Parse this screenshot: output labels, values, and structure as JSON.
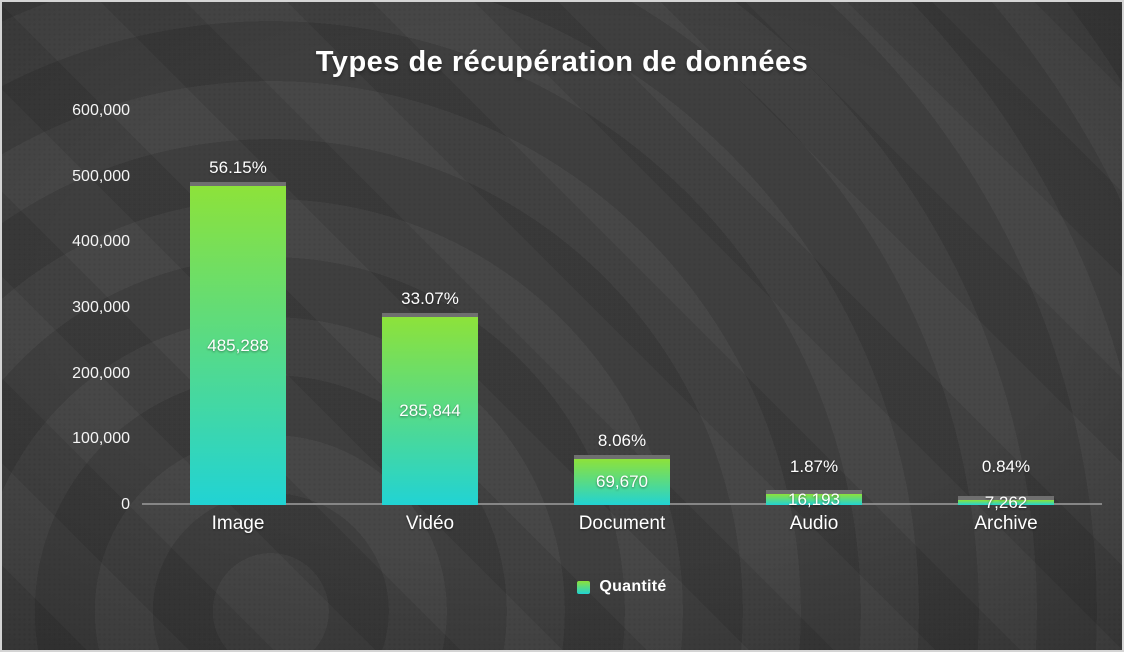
{
  "title": "Types de récupération de données",
  "legend": {
    "label": "Quantité"
  },
  "colors": {
    "background": "#3f3f3f",
    "bar_top": "#8de23a",
    "bar_bottom": "#21d3d4",
    "bar_cap": "#6f6f6f",
    "axis_line": "#868686",
    "text": "#ffffff",
    "border": "#d4d4d4"
  },
  "chart_data": {
    "type": "bar",
    "title": "Types de récupération de données",
    "categories": [
      "Image",
      "Vidéo",
      "Document",
      "Audio",
      "Archive"
    ],
    "series": [
      {
        "name": "Quantité",
        "values": [
          485288,
          285844,
          69670,
          16193,
          7262
        ]
      }
    ],
    "value_labels": [
      "485,288",
      "285,844",
      "69,670",
      "16,193",
      "7,262"
    ],
    "percent_labels": [
      "56.15%",
      "33.07%",
      "8.06%",
      "1.87%",
      "0.84%"
    ],
    "xlabel": "",
    "ylabel": "",
    "ylim": [
      0,
      600000
    ],
    "yticks": [
      "600,000",
      "500,000",
      "400,000",
      "300,000",
      "200,000",
      "100,000",
      "0"
    ],
    "ytick_values": [
      600000,
      500000,
      400000,
      300000,
      200000,
      100000,
      0
    ],
    "grid": false,
    "legend_position": "bottom",
    "bar_gradient": [
      "#8de23a",
      "#21d3d4"
    ],
    "bar_cap_color": "#6f6f6f"
  }
}
